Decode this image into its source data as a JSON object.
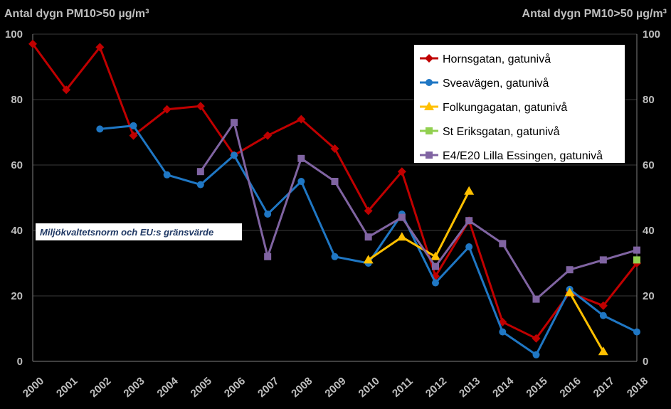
{
  "chart_data": {
    "type": "line",
    "title": "",
    "ylabel_left": "Antal dygn PM10>50 µg/m³",
    "ylabel_right": "Antal dygn PM10>50 µg/m³",
    "ylim": [
      0,
      100
    ],
    "yticks_left": [
      "0",
      "20",
      "40",
      "60",
      "80",
      "100"
    ],
    "yticks_right": [
      "0",
      "20",
      "40",
      "60",
      "80",
      "100"
    ],
    "categories": [
      "2000",
      "2001",
      "2002",
      "2003",
      "2004",
      "2005",
      "2006",
      "2007",
      "2008",
      "2009",
      "2010",
      "2011",
      "2012",
      "2013",
      "2014",
      "2015",
      "2016",
      "2017",
      "2018"
    ],
    "grid": true,
    "legend_position": "top-right",
    "annotation": "Miljökvaltetsnorm och EU:s gränsvärde",
    "series": [
      {
        "name": "Hornsgatan, gatunivå",
        "color": "#c00000",
        "marker": "diamond",
        "values": [
          97,
          83,
          96,
          69,
          77,
          78,
          63,
          69,
          74,
          65,
          46,
          58,
          26,
          43,
          12,
          7,
          21,
          17,
          30
        ]
      },
      {
        "name": "Sveavägen, gatunivå",
        "color": "#1f77c4",
        "marker": "circle",
        "values": [
          null,
          null,
          71,
          72,
          57,
          54,
          63,
          45,
          55,
          32,
          30,
          45,
          24,
          35,
          9,
          2,
          22,
          14,
          9
        ]
      },
      {
        "name": "Folkungagatan, gatunivå",
        "color": "#ffc000",
        "marker": "triangle",
        "values": [
          null,
          null,
          null,
          null,
          null,
          null,
          null,
          null,
          null,
          null,
          31,
          38,
          32,
          52,
          null,
          null,
          21,
          3,
          null
        ]
      },
      {
        "name": "St Eriksgatan, gatunivå",
        "color": "#92d050",
        "marker": "square",
        "values": [
          null,
          null,
          null,
          null,
          null,
          null,
          null,
          null,
          null,
          null,
          null,
          null,
          null,
          null,
          null,
          null,
          null,
          null,
          31
        ]
      },
      {
        "name": "E4/E20 Lilla Essingen, gatunivå",
        "color": "#8064a2",
        "marker": "square",
        "values": [
          null,
          null,
          null,
          null,
          null,
          58,
          73,
          32,
          62,
          55,
          38,
          44,
          29,
          43,
          36,
          19,
          28,
          31,
          34
        ]
      }
    ]
  }
}
